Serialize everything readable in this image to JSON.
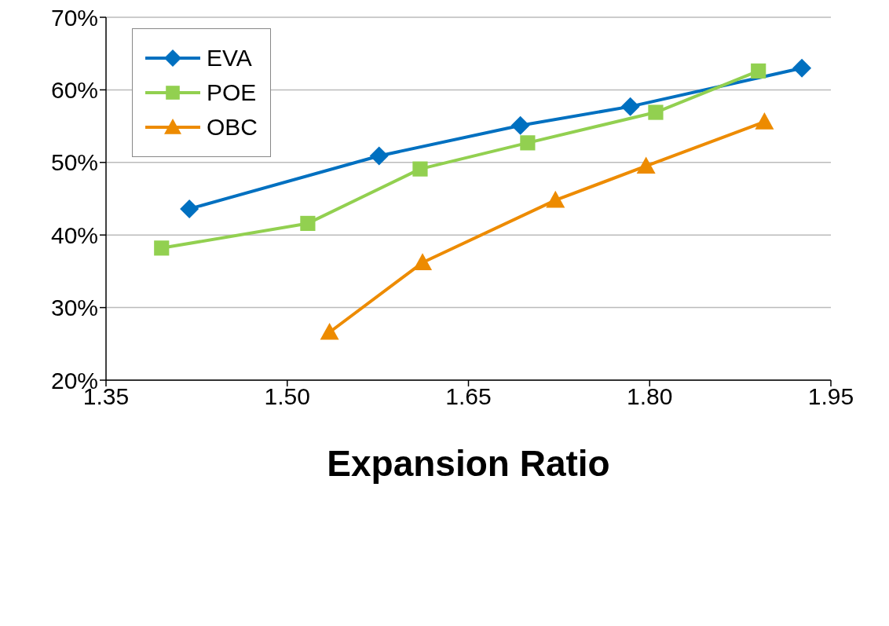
{
  "chart_data": {
    "type": "line",
    "xlabel": "Expansion Ratio",
    "series": [
      {
        "name": "EVA",
        "color": "#0070c0",
        "marker": "diamond",
        "x": [
          1.419,
          1.576,
          1.693,
          1.784,
          1.926
        ],
        "values": [
          43.6,
          50.9,
          55.1,
          57.7,
          63.0
        ]
      },
      {
        "name": "POE",
        "color": "#92d050",
        "marker": "square",
        "x": [
          1.396,
          1.517,
          1.61,
          1.699,
          1.805,
          1.89
        ],
        "values": [
          38.2,
          41.6,
          49.1,
          52.7,
          56.9,
          62.6
        ]
      },
      {
        "name": "OBC",
        "color": "#ed8b00",
        "marker": "triangle",
        "x": [
          1.535,
          1.612,
          1.722,
          1.797,
          1.895
        ],
        "values": [
          26.6,
          36.2,
          44.8,
          49.5,
          55.6
        ]
      }
    ],
    "xlim": [
      1.35,
      1.95
    ],
    "xticks": [
      {
        "value": 1.35,
        "label": "1.35"
      },
      {
        "value": 1.5,
        "label": "1.50"
      },
      {
        "value": 1.65,
        "label": "1.65"
      },
      {
        "value": 1.8,
        "label": "1.80"
      },
      {
        "value": 1.95,
        "label": "1.95"
      }
    ],
    "ylim": [
      20,
      70
    ],
    "yticks": [
      {
        "value": 20,
        "label": "20%"
      },
      {
        "value": 30,
        "label": "30%"
      },
      {
        "value": 40,
        "label": "40%"
      },
      {
        "value": 50,
        "label": "50%"
      },
      {
        "value": 60,
        "label": "60%"
      },
      {
        "value": 70,
        "label": "70%"
      }
    ],
    "grid": "y",
    "legend": "top left",
    "line_style": "solid"
  }
}
